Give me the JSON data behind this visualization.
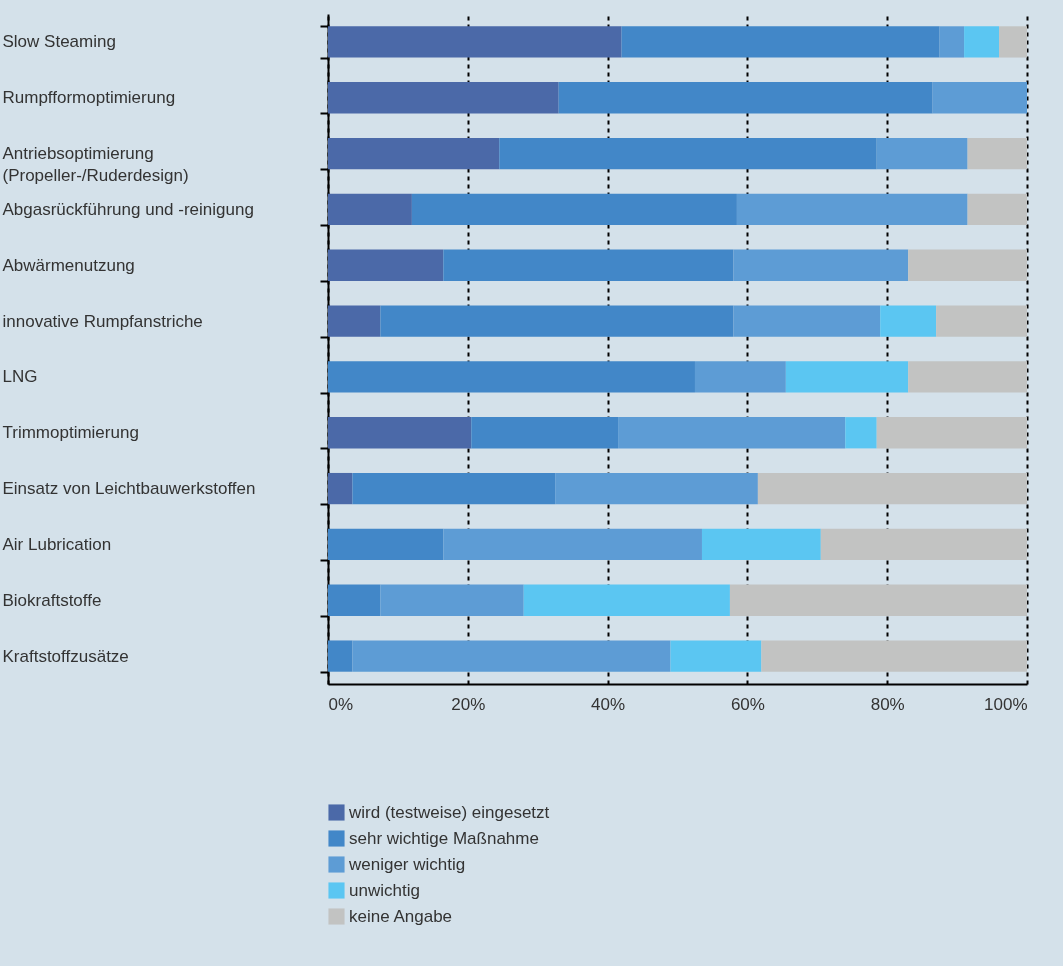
{
  "chart_data": {
    "type": "bar",
    "orientation": "horizontal",
    "stacked": true,
    "categories": [
      "Slow Steaming",
      "Rumpfformoptimierung",
      "Antriebsoptimierung\n(Propeller-/Ruderdesign)",
      "Abgasrückführung und -reinigung",
      "Abwärmenutzung",
      "innovative Rumpfanstriche",
      "LNG",
      "Trimmoptimierung",
      "Einsatz von Leichtbauwerkstoffen",
      "Air Lubrication",
      "Biokraftstoffe",
      "Kraftstoffzusätze"
    ],
    "series": [
      {
        "name": "wird (testweise) eingesetzt",
        "color": "#4b69a8",
        "values": [
          42,
          33,
          24.5,
          12,
          16.5,
          7.5,
          0,
          20.5,
          3.5,
          0,
          0,
          0
        ]
      },
      {
        "name": "sehr wichtige Maßnahme",
        "color": "#4287c8",
        "values": [
          45.5,
          53.5,
          54,
          46.5,
          41.5,
          50.5,
          52.5,
          21,
          29,
          16.5,
          7.5,
          3.5
        ]
      },
      {
        "name": "weniger wichtig",
        "color": "#5d9cd5",
        "values": [
          3.5,
          13.5,
          13,
          33,
          25,
          21,
          13,
          32.5,
          29,
          37,
          20.5,
          45.5
        ]
      },
      {
        "name": "unwichtig",
        "color": "#5bc6f2",
        "values": [
          5,
          0,
          0,
          0,
          0,
          8,
          17.5,
          4.5,
          0,
          17,
          29.5,
          13
        ]
      },
      {
        "name": "keine Angabe",
        "color": "#c2c3c2",
        "values": [
          4,
          0,
          8.5,
          8.5,
          17,
          13,
          17,
          21.5,
          38.5,
          29.5,
          42.5,
          38
        ]
      }
    ],
    "xlim": [
      0,
      100
    ],
    "xticks": [
      {
        "value": 0,
        "label": "0%"
      },
      {
        "value": 20,
        "label": "20%"
      },
      {
        "value": 40,
        "label": "40%"
      },
      {
        "value": 60,
        "label": "60%"
      },
      {
        "value": 80,
        "label": "80%"
      },
      {
        "value": 100,
        "label": "100%"
      }
    ],
    "grid": "x",
    "legend": "bottom"
  }
}
